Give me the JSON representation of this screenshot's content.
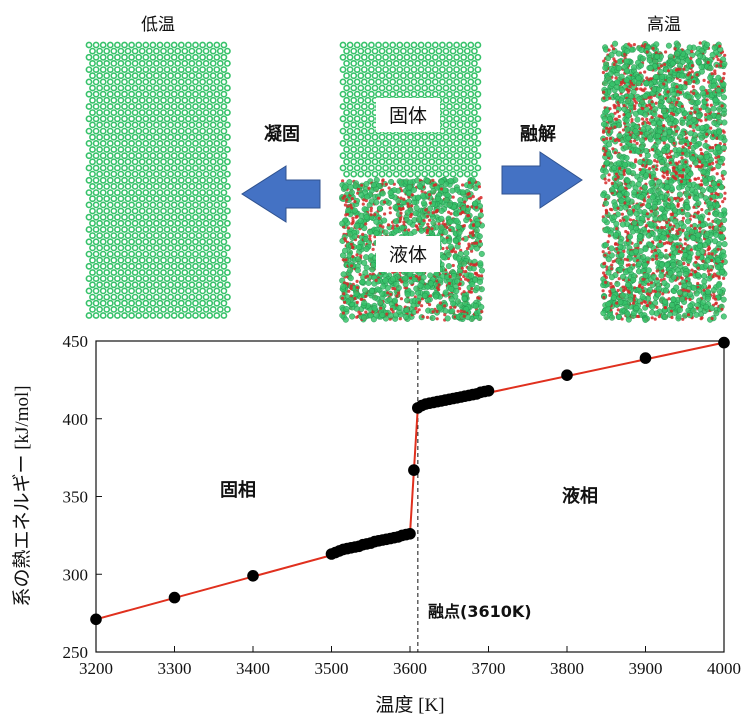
{
  "diagram": {
    "panel_low_title": "低温",
    "panel_mid_solid": "固体",
    "panel_mid_liquid": "液体",
    "panel_high_title": "高温",
    "arrow_left_label": "凝固",
    "arrow_right_label": "融解",
    "colors": {
      "arrow": "#4472c4",
      "atom_green": "#37c26a",
      "atom_red": "#d62828"
    }
  },
  "chart_data": {
    "type": "line",
    "xlabel": "温度 [K]",
    "ylabel": "系の熱エネルギー [kJ/mol]",
    "xlim": [
      3200,
      4000
    ],
    "ylim": [
      250,
      450
    ],
    "xticks": [
      3200,
      3300,
      3400,
      3500,
      3600,
      3700,
      3800,
      3900,
      4000
    ],
    "yticks": [
      250,
      300,
      350,
      400,
      450
    ],
    "points": [
      [
        3200,
        271
      ],
      [
        3300,
        285
      ],
      [
        3400,
        299
      ],
      [
        3500,
        313
      ],
      [
        3505,
        314
      ],
      [
        3510,
        315
      ],
      [
        3515,
        316
      ],
      [
        3520,
        316.5
      ],
      [
        3525,
        317
      ],
      [
        3530,
        317.5
      ],
      [
        3535,
        318
      ],
      [
        3540,
        319
      ],
      [
        3545,
        319.5
      ],
      [
        3550,
        320
      ],
      [
        3555,
        321
      ],
      [
        3560,
        321.5
      ],
      [
        3565,
        322
      ],
      [
        3570,
        322.5
      ],
      [
        3575,
        323
      ],
      [
        3580,
        323.5
      ],
      [
        3585,
        324
      ],
      [
        3590,
        325
      ],
      [
        3595,
        325.5
      ],
      [
        3600,
        326
      ],
      [
        3605,
        367
      ],
      [
        3610,
        407
      ],
      [
        3615,
        408.5
      ],
      [
        3620,
        409.5
      ],
      [
        3625,
        410
      ],
      [
        3630,
        410.5
      ],
      [
        3635,
        411
      ],
      [
        3640,
        411.5
      ],
      [
        3645,
        412
      ],
      [
        3650,
        412.5
      ],
      [
        3655,
        413
      ],
      [
        3660,
        413.5
      ],
      [
        3665,
        414
      ],
      [
        3670,
        414.5
      ],
      [
        3675,
        415
      ],
      [
        3680,
        415.5
      ],
      [
        3685,
        416
      ],
      [
        3690,
        417
      ],
      [
        3695,
        417.5
      ],
      [
        3700,
        418
      ],
      [
        3800,
        428
      ],
      [
        3900,
        439
      ],
      [
        4000,
        449
      ]
    ],
    "fit_line": [
      [
        3200,
        271
      ],
      [
        3600,
        326
      ],
      [
        3610,
        407
      ],
      [
        4000,
        449
      ]
    ],
    "melting_point_x": 3610,
    "annotations": {
      "solid": "固相",
      "liquid": "液相",
      "melting_point": "融点(3610K)"
    },
    "colors": {
      "line": "#e0301e",
      "marker": "#000000"
    }
  }
}
